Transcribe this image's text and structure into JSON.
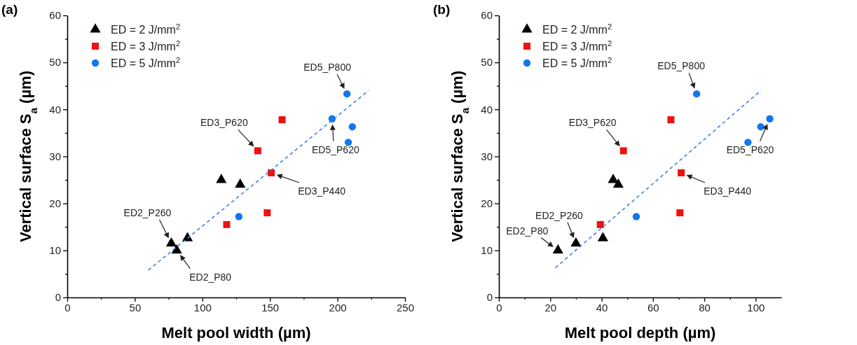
{
  "chart_data": [
    {
      "type": "scatter",
      "title": "(a)",
      "xlabel": "Melt pool width (µm)",
      "ylabel": "Vertical surface S$_{a}$ (µm)",
      "legend": "top left",
      "grid": false,
      "xlim": [
        0,
        250
      ],
      "xticks": [
        0,
        {
          "value": 25,
          "label": null
        },
        50,
        {
          "value": 75,
          "label": null
        },
        100,
        {
          "value": 125,
          "label": null
        },
        150,
        {
          "value": 175,
          "label": null
        },
        200,
        {
          "value": 225,
          "label": null
        },
        250
      ],
      "ylim": [
        0,
        60
      ],
      "yticks": [
        0,
        {
          "value": 5,
          "label": null
        },
        10,
        {
          "value": 15,
          "label": null
        },
        20,
        {
          "value": 25,
          "label": null
        },
        30,
        {
          "value": 35,
          "label": null
        },
        40,
        {
          "value": 45,
          "label": null
        },
        50,
        {
          "value": 55,
          "label": null
        },
        60
      ],
      "series": [
        {
          "name": "ED = 2 J/mm$^{2}$",
          "color": "#000000",
          "marker": "triangle",
          "x": [
            77,
            81,
            89,
            114,
            128
          ],
          "values": [
            11.5,
            10,
            12.6,
            25,
            24
          ]
        },
        {
          "name": "ED = 3 J/mm$^{2}$",
          "color": "#ee1111",
          "marker": "square",
          "x": [
            118,
            141,
            148,
            151,
            159
          ],
          "values": [
            15.5,
            31.2,
            18,
            26.5,
            37.8
          ]
        },
        {
          "name": "ED = 5 J/mm$^{2}$",
          "color": "#1177ee",
          "marker": "circle",
          "x": [
            127,
            196,
            207,
            208,
            211
          ],
          "values": [
            17.2,
            38,
            43.3,
            33,
            36.3
          ]
        },
        {
          "type": "line",
          "color": "#4a7fd4",
          "line_style": "dashed",
          "marker": "none",
          "x": [
            60,
            223
          ],
          "values": [
            5.8,
            44
          ]
        }
      ],
      "annotations": [
        {
          "text": "ED5_P800",
          "x": 207,
          "y": 43.3
        },
        {
          "text": "ED3_P620",
          "x": 141,
          "y": 31.2
        },
        {
          "text": "ED5_P620",
          "x": 196,
          "y": 38
        },
        {
          "text": "ED3_P440",
          "x": 151,
          "y": 26.5
        },
        {
          "text": "ED2_P260",
          "x": 77,
          "y": 11.5
        },
        {
          "text": "ED2_P80",
          "x": 81,
          "y": 10
        }
      ]
    },
    {
      "type": "scatter",
      "title": "(b)",
      "xlabel": "Melt pool depth (µm)",
      "ylabel": "Vertical surface S$_{a}$ (µm)",
      "legend": "top left",
      "grid": false,
      "xlim": [
        0,
        110
      ],
      "xticks": [
        0,
        {
          "value": 10,
          "label": null
        },
        20,
        {
          "value": 30,
          "label": null
        },
        40,
        {
          "value": 50,
          "label": null
        },
        60,
        {
          "value": 70,
          "label": null
        },
        80,
        {
          "value": 90,
          "label": null
        },
        100
      ],
      "ylim": [
        0,
        60
      ],
      "yticks": [
        0,
        {
          "value": 5,
          "label": null
        },
        10,
        {
          "value": 15,
          "label": null
        },
        20,
        {
          "value": 25,
          "label": null
        },
        30,
        {
          "value": 35,
          "label": null
        },
        40,
        {
          "value": 45,
          "label": null
        },
        50,
        {
          "value": 55,
          "label": null
        },
        60
      ],
      "series": [
        {
          "name": "ED = 2 J/mm$^{2}$",
          "color": "#000000",
          "marker": "triangle",
          "x": [
            23,
            30,
            40.5,
            44.5,
            46.5
          ],
          "values": [
            10,
            11.5,
            12.6,
            25,
            24
          ]
        },
        {
          "name": "ED = 3 J/mm$^{2}$",
          "color": "#ee1111",
          "marker": "square",
          "x": [
            39.5,
            48.5,
            67,
            70.5,
            71
          ],
          "values": [
            15.5,
            31.2,
            37.8,
            18,
            26.5
          ]
        },
        {
          "name": "ED = 5 J/mm$^{2}$",
          "color": "#1177ee",
          "marker": "circle",
          "x": [
            53.5,
            77,
            97,
            102,
            105.5
          ],
          "values": [
            17.2,
            43.3,
            33,
            36.3,
            38
          ]
        },
        {
          "type": "line",
          "color": "#4a7fd4",
          "line_style": "dashed",
          "marker": "none",
          "x": [
            22,
            102
          ],
          "values": [
            6.3,
            44
          ]
        }
      ],
      "annotations": [
        {
          "text": "ED5_P800",
          "x": 77,
          "y": 43.3
        },
        {
          "text": "ED3_P620",
          "x": 48.5,
          "y": 31.2
        },
        {
          "text": "ED3_P440",
          "x": 71,
          "y": 26.5
        },
        {
          "text": "ED5_P620",
          "x": 105.5,
          "y": 38
        },
        {
          "text": "ED2_P260",
          "x": 30,
          "y": 11.5
        },
        {
          "text": "ED2_P80",
          "x": 23,
          "y": 10
        }
      ]
    }
  ]
}
